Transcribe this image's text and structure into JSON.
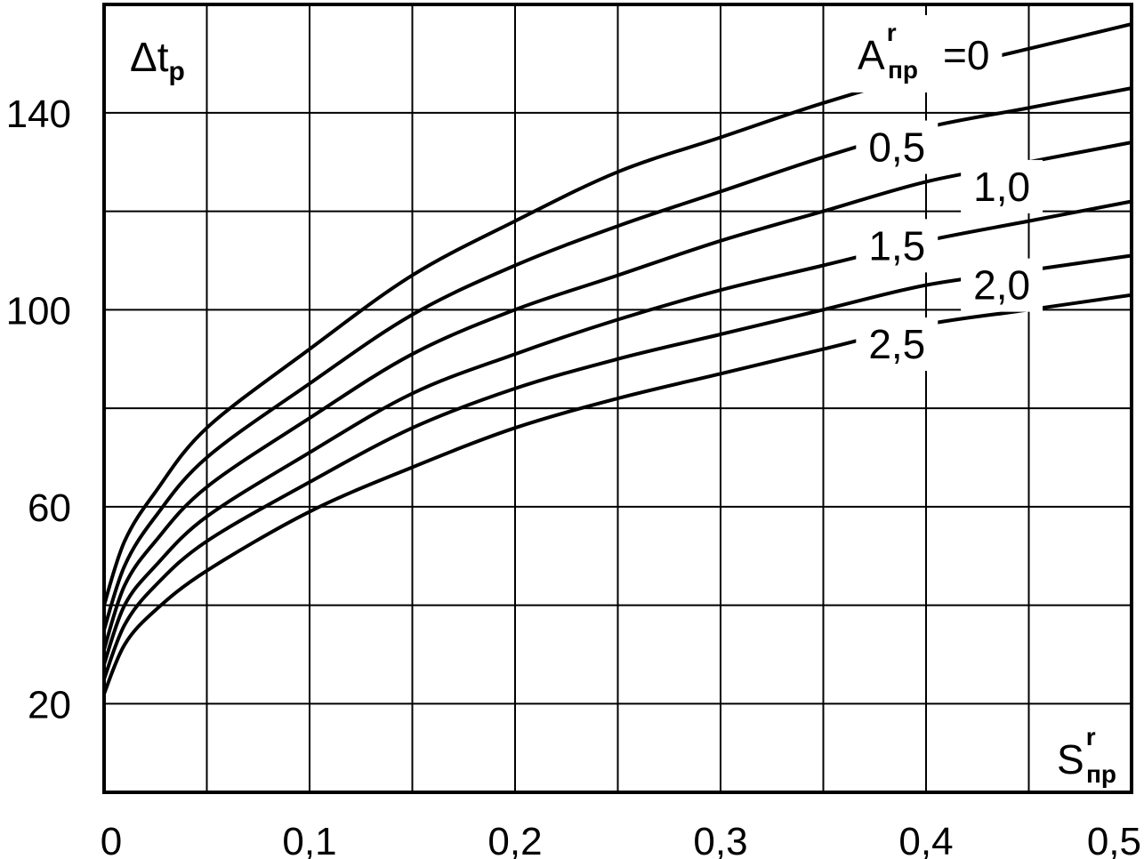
{
  "chart_data": {
    "type": "line",
    "x_ticks": [
      "0",
      "0,1",
      "0,2",
      "0,3",
      "0,4",
      "0,5"
    ],
    "x_tick_values": [
      0,
      0.1,
      0.2,
      0.3,
      0.4,
      0.5
    ],
    "y_ticks": [
      "20",
      "60",
      "100",
      "140"
    ],
    "y_tick_values": [
      20,
      60,
      100,
      140
    ],
    "xlim": [
      0,
      0.5
    ],
    "ylim": [
      2,
      162
    ],
    "grid": true,
    "grid_x_values": [
      0.05,
      0.1,
      0.15,
      0.2,
      0.25,
      0.3,
      0.35,
      0.4,
      0.45
    ],
    "grid_y_values": [
      20,
      40,
      60,
      80,
      100,
      120,
      140
    ],
    "ylabel": {
      "main": "Δt",
      "sub": "p"
    },
    "xlabel": {
      "main": "S",
      "sup": "r",
      "sub": "пр"
    },
    "legend_title": {
      "main": "A",
      "sup": "r",
      "sub": "пр",
      "suffix": "=0"
    },
    "series": [
      {
        "name": "=0",
        "x": [
          0,
          0.01,
          0.025,
          0.05,
          0.1,
          0.15,
          0.2,
          0.25,
          0.3,
          0.35,
          0.4,
          0.45,
          0.5
        ],
        "values": [
          40,
          53,
          63,
          76,
          92,
          107,
          118,
          128,
          135,
          142,
          148,
          153,
          158
        ],
        "label_x": 0.418,
        "label_y": 149
      },
      {
        "name": "0,5",
        "x": [
          0,
          0.01,
          0.025,
          0.05,
          0.1,
          0.15,
          0.2,
          0.25,
          0.3,
          0.35,
          0.4,
          0.45,
          0.5
        ],
        "values": [
          35,
          48,
          58,
          70,
          85,
          99,
          109,
          117,
          124,
          131,
          137,
          141,
          145
        ],
        "label_x": 0.372,
        "label_y": 133
      },
      {
        "name": "1,0",
        "x": [
          0,
          0.01,
          0.025,
          0.05,
          0.1,
          0.15,
          0.2,
          0.25,
          0.3,
          0.35,
          0.4,
          0.45,
          0.5
        ],
        "values": [
          31,
          44,
          53,
          64,
          78,
          91,
          100,
          107,
          114,
          120,
          126,
          130,
          134
        ],
        "label_x": 0.423,
        "label_y": 125
      },
      {
        "name": "1,5",
        "x": [
          0,
          0.01,
          0.025,
          0.05,
          0.1,
          0.15,
          0.2,
          0.25,
          0.3,
          0.35,
          0.4,
          0.45,
          0.5
        ],
        "values": [
          28,
          40,
          48,
          58,
          71,
          83,
          91,
          98,
          104,
          109,
          114,
          118,
          122
        ],
        "label_x": 0.372,
        "label_y": 113
      },
      {
        "name": "2,0",
        "x": [
          0,
          0.01,
          0.025,
          0.05,
          0.1,
          0.15,
          0.2,
          0.25,
          0.3,
          0.35,
          0.4,
          0.45,
          0.5
        ],
        "values": [
          25,
          36,
          44,
          53,
          65,
          76,
          84,
          90,
          95,
          100,
          105,
          108,
          111
        ],
        "label_x": 0.423,
        "label_y": 105
      },
      {
        "name": "2,5",
        "x": [
          0,
          0.01,
          0.025,
          0.05,
          0.1,
          0.15,
          0.2,
          0.25,
          0.3,
          0.35,
          0.4,
          0.45,
          0.5
        ],
        "values": [
          22,
          32,
          39,
          47,
          59,
          68,
          76,
          82,
          87,
          92,
          97,
          100,
          103
        ],
        "label_x": 0.372,
        "label_y": 93
      }
    ]
  }
}
